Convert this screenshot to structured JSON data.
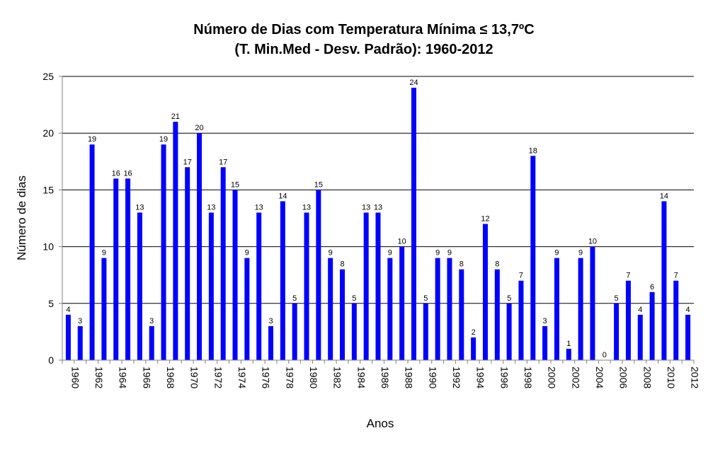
{
  "chart_data": {
    "type": "bar",
    "title": "Número de Dias com Temperatura Mínima ≤ 13,7ºC",
    "subtitle": "(T. Min.Med  - Desv. Padrão): 1960-2012",
    "xlabel": "Anos",
    "ylabel": "Número de dias",
    "ylim": [
      0,
      25
    ],
    "yticks": [
      "0",
      "5",
      "10",
      "15",
      "20",
      "25"
    ],
    "grid": true,
    "legend": "none",
    "colors": {
      "bar": "#0000ff",
      "grid": "#000000",
      "axis": "#808080"
    },
    "x_tick_labels": [
      "1960",
      "1962",
      "1964",
      "1966",
      "1968",
      "1970",
      "1972",
      "1974",
      "1976",
      "1978",
      "1980",
      "1982",
      "1984",
      "1986",
      "1988",
      "1990",
      "1992",
      "1994",
      "1996",
      "1998",
      "2000",
      "2002",
      "2004",
      "2006",
      "2008",
      "2010",
      "2012"
    ],
    "categories": [
      "1960",
      "1961",
      "1962",
      "1963",
      "1964",
      "1965",
      "1966",
      "1967",
      "1968",
      "1969",
      "1970",
      "1971",
      "1972",
      "1973",
      "1974",
      "1975",
      "1976",
      "1977",
      "1978",
      "1979",
      "1980",
      "1981",
      "1982",
      "1983",
      "1984",
      "1985",
      "1986",
      "1987",
      "1988",
      "1989",
      "1990",
      "1991",
      "1992",
      "1993",
      "1994",
      "1995",
      "1996",
      "1997",
      "1998",
      "1999",
      "2000",
      "2001",
      "2002",
      "2003",
      "2004",
      "2005",
      "2006",
      "2007",
      "2008",
      "2009",
      "2010",
      "2011",
      "2012"
    ],
    "values": [
      4,
      3,
      19,
      9,
      16,
      16,
      13,
      3,
      19,
      21,
      17,
      20,
      13,
      17,
      15,
      9,
      13,
      3,
      14,
      5,
      13,
      15,
      9,
      8,
      5,
      13,
      13,
      9,
      10,
      24,
      5,
      9,
      9,
      8,
      2,
      12,
      8,
      5,
      7,
      18,
      3,
      9,
      1,
      9,
      10,
      0,
      5,
      7,
      4,
      6,
      14,
      7,
      4
    ]
  }
}
